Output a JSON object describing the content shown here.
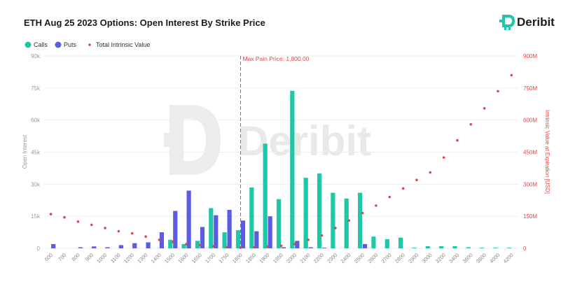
{
  "brand": {
    "name": "Deribit",
    "color": "#1fc7a6"
  },
  "chart_data": {
    "type": "bar",
    "title": "ETH Aug 25 2023 Options: Open Interest By Strike Price",
    "legend": [
      "Calls",
      "Puts",
      "Total Intrinsic Value"
    ],
    "legend_placement": "top-left",
    "colors": {
      "calls": "#1fc7a6",
      "puts": "#5b5ce2",
      "intrinsic": "#e04848"
    },
    "categories": [
      "600",
      "700",
      "800",
      "900",
      "1000",
      "1100",
      "1200",
      "1300",
      "1400",
      "1500",
      "1600",
      "1650",
      "1700",
      "1750",
      "1800",
      "1850",
      "1900",
      "1950",
      "2000",
      "2100",
      "2200",
      "2300",
      "2400",
      "2500",
      "2600",
      "2700",
      "2800",
      "2900",
      "3000",
      "3200",
      "3400",
      "3600",
      "3800",
      "4000",
      "4200"
    ],
    "series": [
      {
        "name": "Calls",
        "axis": "left",
        "values": [
          0,
          0,
          0,
          0,
          0,
          0,
          0,
          0,
          0,
          4000,
          2000,
          3500,
          18800,
          7500,
          8500,
          28500,
          49000,
          23000,
          73700,
          33000,
          35000,
          26000,
          23300,
          26000,
          5500,
          4300,
          5000,
          300,
          1000,
          1000,
          1000,
          500,
          300,
          300,
          300
        ]
      },
      {
        "name": "Puts",
        "axis": "left",
        "values": [
          2000,
          0,
          500,
          900,
          500,
          1500,
          2400,
          2800,
          7500,
          17500,
          27000,
          10000,
          15500,
          18000,
          13000,
          8000,
          15000,
          500,
          3500,
          500,
          300,
          0,
          0,
          2000,
          0,
          0,
          0,
          0,
          0,
          0,
          0,
          0,
          0,
          0,
          0
        ]
      },
      {
        "name": "Total Intrinsic Value",
        "axis": "right",
        "type": "scatter",
        "values": [
          160000000,
          145000000,
          125000000,
          110000000,
          95000000,
          80000000,
          70000000,
          55000000,
          40000000,
          30000000,
          20000000,
          15000000,
          10000000,
          5000000,
          3000000,
          5000000,
          8000000,
          12000000,
          20000000,
          40000000,
          60000000,
          95000000,
          130000000,
          165000000,
          200000000,
          240000000,
          280000000,
          320000000,
          355000000,
          425000000,
          505000000,
          580000000,
          655000000,
          735000000,
          810000000
        ]
      }
    ],
    "yaxis_left": {
      "label": "Open Interest",
      "min": 0,
      "max": 90000,
      "ticks": [
        "0",
        "15k",
        "30k",
        "45k",
        "60k",
        "75k",
        "90k"
      ]
    },
    "yaxis_right": {
      "label": "Intrinsic Value at Expiration [USD]",
      "min": 0,
      "max": 900000000,
      "ticks": [
        "0",
        "150M",
        "300M",
        "450M",
        "600M",
        "750M",
        "900M"
      ]
    },
    "grid": true,
    "annotation": {
      "label": "Max Pain Price: 1,800.00",
      "x": "1800"
    }
  }
}
